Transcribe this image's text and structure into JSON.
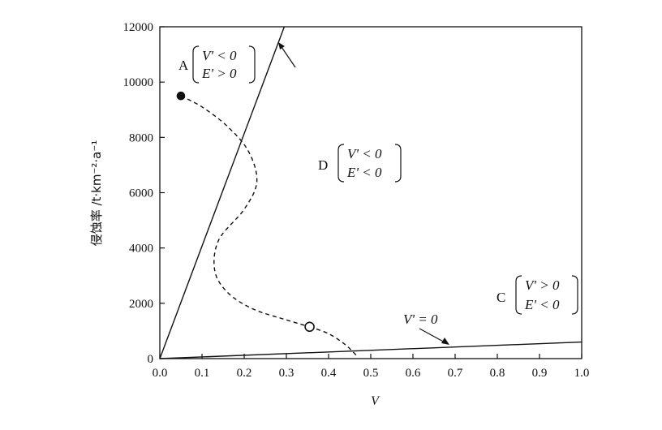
{
  "chart_data": {
    "type": "line",
    "xlabel": "V",
    "ylabel": "侵蚀率 /t·km⁻²·a⁻¹",
    "xlim": [
      0.0,
      1.0
    ],
    "ylim": [
      0,
      12000
    ],
    "xticks": [
      "0.0",
      "0.1",
      "0.2",
      "0.3",
      "0.4",
      "0.5",
      "0.6",
      "0.7",
      "0.8",
      "0.9",
      "1.0"
    ],
    "yticks": [
      "0",
      "2000",
      "4000",
      "6000",
      "8000",
      "10000",
      "12000"
    ],
    "grid": false,
    "series": [
      {
        "name": "",
        "style": "solid",
        "x": [
          0.0,
          0.295
        ],
        "y": [
          0,
          12000
        ]
      },
      {
        "name": "V' = 0",
        "style": "solid",
        "x": [
          0.0,
          1.0
        ],
        "y": [
          0,
          600
        ]
      },
      {
        "name": "",
        "style": "dashed",
        "x": [
          0.05,
          0.1,
          0.16,
          0.21,
          0.23,
          0.2,
          0.14,
          0.13,
          0.16,
          0.22,
          0.3,
          0.355
        ],
        "y": [
          9500,
          9100,
          8400,
          7500,
          6400,
          5400,
          4300,
          3200,
          2400,
          1800,
          1400,
          1150
        ]
      },
      {
        "name": "",
        "style": "dashed",
        "x": [
          0.355,
          0.4,
          0.44,
          0.47
        ],
        "y": [
          1150,
          900,
          500,
          50
        ]
      }
    ],
    "markers": [
      {
        "type": "filled-circle",
        "x": 0.05,
        "y": 9500
      },
      {
        "type": "open-circle",
        "x": 0.355,
        "y": 1150
      }
    ],
    "annotations": [
      {
        "region": "A",
        "cond1": "V' < 0",
        "cond2": "E' > 0"
      },
      {
        "region": "D",
        "cond1": "V' < 0",
        "cond2": "E' < 0"
      },
      {
        "region": "C",
        "cond1": "V' > 0",
        "cond2": "E' < 0"
      },
      {
        "curve_label": "V' = 0"
      }
    ]
  }
}
